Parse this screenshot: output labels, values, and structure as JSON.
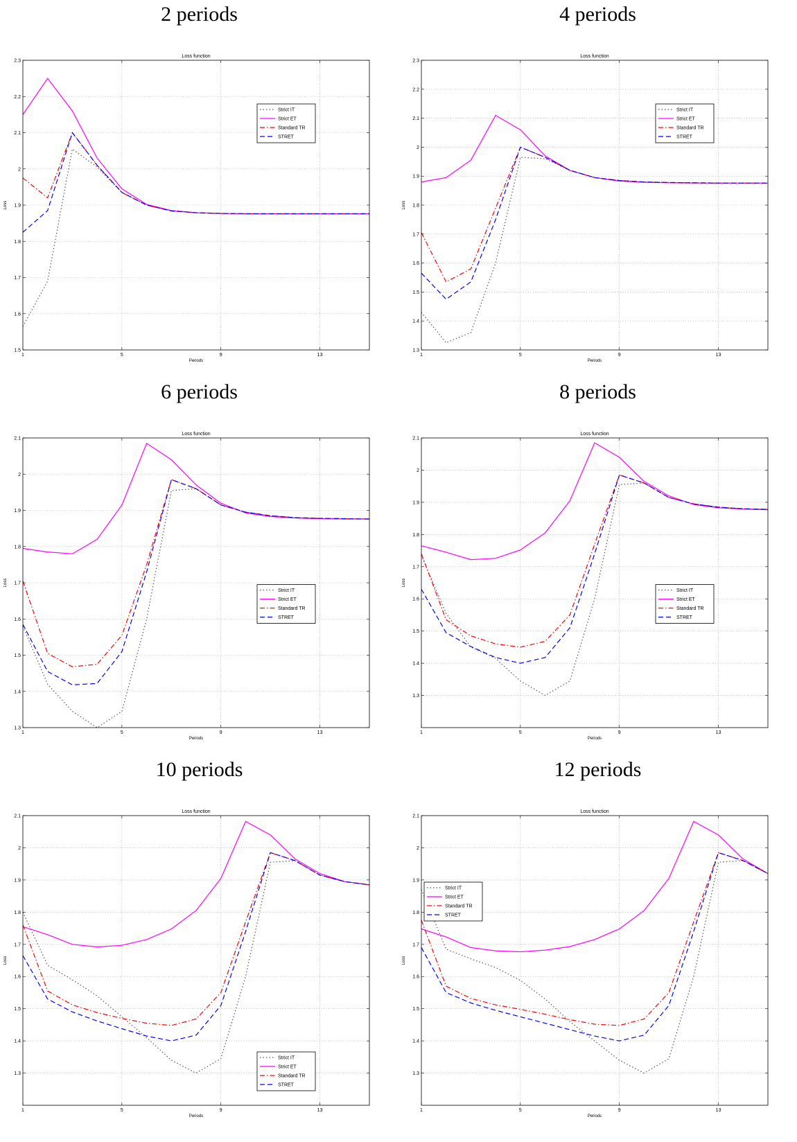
{
  "panels": [
    {
      "title": "2 periods"
    },
    {
      "title": "4 periods"
    },
    {
      "title": "6 periods"
    },
    {
      "title": "8 periods"
    },
    {
      "title": "10 periods"
    },
    {
      "title": "12 periods"
    }
  ],
  "chart_data": [
    {
      "type": "line",
      "title": "Loss function",
      "xlabel": "Periods",
      "ylabel": "Loss",
      "xlim": [
        1,
        15
      ],
      "ylim": [
        1.5,
        2.3
      ],
      "xticks": [
        1,
        5,
        9,
        13
      ],
      "yticks": [
        1.5,
        1.6,
        1.7,
        1.8,
        1.9,
        2,
        2.1,
        2.2,
        2.3
      ],
      "grid": true,
      "legend_position": "upper right",
      "x": [
        1,
        2,
        3,
        4,
        5,
        6,
        7,
        8,
        9,
        10,
        11,
        12,
        13,
        14,
        15
      ],
      "series": [
        {
          "name": "Strict IT",
          "color": "#555555",
          "style": "dotted",
          "values": [
            1.565,
            1.69,
            2.055,
            2.005,
            1.935,
            1.9,
            1.884,
            1.879,
            1.877,
            1.876,
            1.876,
            1.876,
            1.876,
            1.876,
            1.876
          ]
        },
        {
          "name": "Strict ET",
          "color": "#ff00ff",
          "style": "solid",
          "values": [
            2.15,
            2.25,
            2.16,
            2.03,
            1.945,
            1.902,
            1.885,
            1.879,
            1.877,
            1.876,
            1.876,
            1.876,
            1.876,
            1.876,
            1.876
          ]
        },
        {
          "name": "Standard TR",
          "color": "#ff0000",
          "style": "dashdot",
          "values": [
            1.975,
            1.92,
            2.1,
            2.01,
            1.935,
            1.9,
            1.884,
            1.879,
            1.877,
            1.876,
            1.876,
            1.876,
            1.876,
            1.876,
            1.876
          ]
        },
        {
          "name": "STRET",
          "color": "#0000ff",
          "style": "dashed",
          "values": [
            1.825,
            1.885,
            2.1,
            2.01,
            1.935,
            1.9,
            1.884,
            1.879,
            1.877,
            1.876,
            1.876,
            1.876,
            1.876,
            1.876,
            1.876
          ]
        }
      ]
    },
    {
      "type": "line",
      "title": "Loss function",
      "xlabel": "Periods",
      "ylabel": "Loss",
      "xlim": [
        1,
        15
      ],
      "ylim": [
        1.3,
        2.3
      ],
      "xticks": [
        1,
        5,
        9,
        13
      ],
      "yticks": [
        1.3,
        1.4,
        1.5,
        1.6,
        1.7,
        1.8,
        1.9,
        2,
        2.1,
        2.2,
        2.3
      ],
      "grid": true,
      "legend_position": "upper right",
      "x": [
        1,
        2,
        3,
        4,
        5,
        6,
        7,
        8,
        9,
        10,
        11,
        12,
        13,
        14,
        15
      ],
      "series": [
        {
          "name": "Strict IT",
          "color": "#555555",
          "style": "dotted",
          "values": [
            1.43,
            1.325,
            1.36,
            1.6,
            1.965,
            1.96,
            1.92,
            1.895,
            1.885,
            1.88,
            1.878,
            1.877,
            1.876,
            1.876,
            1.876
          ]
        },
        {
          "name": "Strict ET",
          "color": "#ff00ff",
          "style": "solid",
          "values": [
            1.88,
            1.895,
            1.955,
            2.11,
            2.06,
            1.97,
            1.92,
            1.895,
            1.883,
            1.879,
            1.877,
            1.876,
            1.876,
            1.876,
            1.876
          ]
        },
        {
          "name": "Standard TR",
          "color": "#ff0000",
          "style": "dashdot",
          "values": [
            1.705,
            1.535,
            1.58,
            1.79,
            2.0,
            1.965,
            1.92,
            1.895,
            1.885,
            1.88,
            1.878,
            1.877,
            1.876,
            1.876,
            1.876
          ]
        },
        {
          "name": "STRET",
          "color": "#0000ff",
          "style": "dashed",
          "values": [
            1.565,
            1.475,
            1.535,
            1.75,
            2.0,
            1.965,
            1.92,
            1.895,
            1.885,
            1.88,
            1.878,
            1.877,
            1.876,
            1.876,
            1.876
          ]
        }
      ]
    },
    {
      "type": "line",
      "title": "Loss function",
      "xlabel": "Periods",
      "ylabel": "Loss",
      "xlim": [
        1,
        15
      ],
      "ylim": [
        1.3,
        2.1
      ],
      "xticks": [
        1,
        5,
        9,
        13
      ],
      "yticks": [
        1.3,
        1.4,
        1.5,
        1.6,
        1.7,
        1.8,
        1.9,
        2,
        2.1
      ],
      "grid": true,
      "legend_position": "center right",
      "x": [
        1,
        2,
        3,
        4,
        5,
        6,
        7,
        8,
        9,
        10,
        11,
        12,
        13,
        14,
        15
      ],
      "series": [
        {
          "name": "Strict IT",
          "color": "#555555",
          "style": "dotted",
          "values": [
            1.58,
            1.42,
            1.345,
            1.3,
            1.345,
            1.6,
            1.955,
            1.96,
            1.915,
            1.895,
            1.885,
            1.88,
            1.878,
            1.877,
            1.876
          ]
        },
        {
          "name": "Strict ET",
          "color": "#ff00ff",
          "style": "solid",
          "values": [
            1.795,
            1.785,
            1.78,
            1.82,
            1.915,
            2.085,
            2.04,
            1.97,
            1.92,
            1.893,
            1.883,
            1.879,
            1.877,
            1.876,
            1.876
          ]
        },
        {
          "name": "Standard TR",
          "color": "#ff0000",
          "style": "dashdot",
          "values": [
            1.705,
            1.505,
            1.468,
            1.475,
            1.555,
            1.75,
            1.985,
            1.96,
            1.915,
            1.895,
            1.885,
            1.88,
            1.878,
            1.877,
            1.876
          ]
        },
        {
          "name": "STRET",
          "color": "#0000ff",
          "style": "dashed",
          "values": [
            1.585,
            1.455,
            1.418,
            1.422,
            1.51,
            1.73,
            1.985,
            1.96,
            1.915,
            1.895,
            1.885,
            1.88,
            1.878,
            1.877,
            1.876
          ]
        }
      ]
    },
    {
      "type": "line",
      "title": "Loss function",
      "xlabel": "Periods",
      "ylabel": "Loss",
      "xlim": [
        1,
        15
      ],
      "ylim": [
        1.2,
        2.1
      ],
      "xticks": [
        1,
        5,
        9,
        13
      ],
      "yticks": [
        1.3,
        1.4,
        1.5,
        1.6,
        1.7,
        1.8,
        1.9,
        2,
        2.1
      ],
      "grid": true,
      "legend_position": "center right",
      "x": [
        1,
        2,
        3,
        4,
        5,
        6,
        7,
        8,
        9,
        10,
        11,
        12,
        13,
        14,
        15
      ],
      "series": [
        {
          "name": "Strict IT",
          "color": "#555555",
          "style": "dotted",
          "values": [
            1.735,
            1.555,
            1.45,
            1.415,
            1.345,
            1.3,
            1.345,
            1.6,
            1.955,
            1.96,
            1.915,
            1.895,
            1.885,
            1.88,
            1.878
          ]
        },
        {
          "name": "Strict ET",
          "color": "#ff00ff",
          "style": "solid",
          "values": [
            1.765,
            1.745,
            1.722,
            1.726,
            1.752,
            1.805,
            1.905,
            2.085,
            2.04,
            1.965,
            1.92,
            1.893,
            1.883,
            1.879,
            1.877
          ]
        },
        {
          "name": "Standard TR",
          "color": "#ff0000",
          "style": "dashdot",
          "values": [
            1.74,
            1.535,
            1.485,
            1.46,
            1.45,
            1.468,
            1.55,
            1.77,
            1.985,
            1.96,
            1.915,
            1.895,
            1.885,
            1.88,
            1.878
          ]
        },
        {
          "name": "STRET",
          "color": "#0000ff",
          "style": "dashed",
          "values": [
            1.63,
            1.495,
            1.452,
            1.418,
            1.4,
            1.418,
            1.51,
            1.74,
            1.985,
            1.96,
            1.915,
            1.895,
            1.885,
            1.88,
            1.878
          ]
        }
      ]
    },
    {
      "type": "line",
      "title": "Loss function",
      "xlabel": "Periods",
      "ylabel": "Loss",
      "xlim": [
        1,
        15
      ],
      "ylim": [
        1.2,
        2.1
      ],
      "xticks": [
        1,
        5,
        9,
        13
      ],
      "yticks": [
        1.3,
        1.4,
        1.5,
        1.6,
        1.7,
        1.8,
        1.9,
        2,
        2.1
      ],
      "grid": true,
      "legend_position": "lower right",
      "x": [
        1,
        2,
        3,
        4,
        5,
        6,
        7,
        8,
        9,
        10,
        11,
        12,
        13,
        14,
        15
      ],
      "series": [
        {
          "name": "Strict IT",
          "color": "#555555",
          "style": "dotted",
          "values": [
            1.8,
            1.635,
            1.59,
            1.54,
            1.475,
            1.41,
            1.34,
            1.3,
            1.345,
            1.6,
            1.955,
            1.96,
            1.915,
            1.895,
            1.885
          ]
        },
        {
          "name": "Strict ET",
          "color": "#ff00ff",
          "style": "solid",
          "values": [
            1.755,
            1.73,
            1.7,
            1.692,
            1.697,
            1.715,
            1.748,
            1.805,
            1.905,
            2.082,
            2.04,
            1.965,
            1.92,
            1.895,
            1.885
          ]
        },
        {
          "name": "Standard TR",
          "color": "#ff0000",
          "style": "dashdot",
          "values": [
            1.76,
            1.555,
            1.512,
            1.488,
            1.47,
            1.455,
            1.448,
            1.468,
            1.55,
            1.77,
            1.985,
            1.96,
            1.915,
            1.895,
            1.885
          ]
        },
        {
          "name": "STRET",
          "color": "#0000ff",
          "style": "dashed",
          "values": [
            1.665,
            1.53,
            1.49,
            1.462,
            1.438,
            1.415,
            1.4,
            1.418,
            1.51,
            1.74,
            1.985,
            1.96,
            1.915,
            1.895,
            1.885
          ]
        }
      ]
    },
    {
      "type": "line",
      "title": "Loss function",
      "xlabel": "Periods",
      "ylabel": "Loss",
      "xlim": [
        1,
        15
      ],
      "ylim": [
        1.2,
        2.1
      ],
      "xticks": [
        1,
        5,
        9,
        13
      ],
      "yticks": [
        1.3,
        1.4,
        1.5,
        1.6,
        1.7,
        1.8,
        1.9,
        2,
        2.1
      ],
      "grid": true,
      "legend_position": "upper left",
      "x": [
        1,
        2,
        3,
        4,
        5,
        6,
        7,
        8,
        9,
        10,
        11,
        12,
        13,
        14,
        15
      ],
      "series": [
        {
          "name": "Strict IT",
          "color": "#555555",
          "style": "dotted",
          "values": [
            1.87,
            1.685,
            1.655,
            1.628,
            1.588,
            1.53,
            1.46,
            1.4,
            1.34,
            1.3,
            1.345,
            1.6,
            1.955,
            1.96,
            1.92
          ]
        },
        {
          "name": "Strict ET",
          "color": "#ff00ff",
          "style": "solid",
          "values": [
            1.748,
            1.723,
            1.69,
            1.68,
            1.677,
            1.682,
            1.693,
            1.715,
            1.748,
            1.805,
            1.905,
            2.082,
            2.04,
            1.965,
            1.92
          ]
        },
        {
          "name": "Standard TR",
          "color": "#ff0000",
          "style": "dashdot",
          "values": [
            1.775,
            1.57,
            1.532,
            1.512,
            1.498,
            1.483,
            1.466,
            1.452,
            1.448,
            1.468,
            1.55,
            1.77,
            1.985,
            1.96,
            1.92
          ]
        },
        {
          "name": "STRET",
          "color": "#0000ff",
          "style": "dashed",
          "values": [
            1.69,
            1.55,
            1.518,
            1.495,
            1.475,
            1.455,
            1.435,
            1.415,
            1.4,
            1.418,
            1.51,
            1.74,
            1.985,
            1.96,
            1.92
          ]
        }
      ]
    }
  ]
}
